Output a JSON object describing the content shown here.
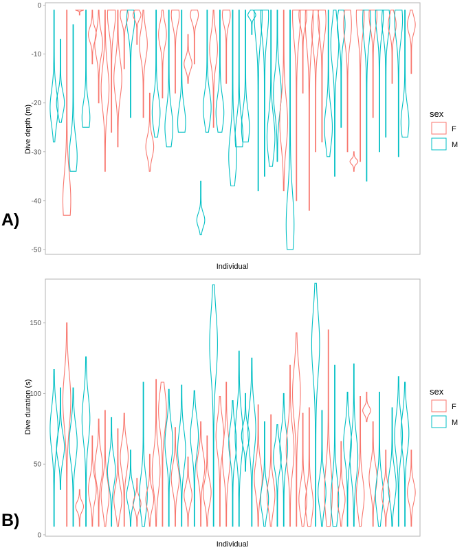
{
  "colors": {
    "F": "#F8766D",
    "M": "#00BFC4",
    "frame": "#B3B3B3",
    "tick": "#4D4D4D"
  },
  "chart_data": [
    {
      "type": "violin",
      "panel_label": "A)",
      "title": "",
      "xlabel": "Individual",
      "ylabel": "Dive depth (m)",
      "ylim": [
        -51,
        0.5
      ],
      "yticks": [
        0,
        -10,
        -20,
        -30,
        -40,
        -50
      ],
      "ytick_labels": [
        "0",
        "-10",
        "-20",
        "-30",
        "-40",
        "-50"
      ],
      "legend": {
        "title": "sex",
        "entries": [
          "F",
          "M"
        ],
        "placement": "right"
      },
      "series": [
        {
          "sex": "M",
          "min": -28,
          "max": -1,
          "mode": -21
        },
        {
          "sex": "M",
          "min": -24,
          "max": -7,
          "mode": -20
        },
        {
          "sex": "F",
          "min": -43,
          "max": -1,
          "mode": -40
        },
        {
          "sex": "M",
          "min": -34,
          "max": -4,
          "mode": -31
        },
        {
          "sex": "F",
          "min": -2,
          "max": -1,
          "mode": -1
        },
        {
          "sex": "M",
          "min": -25,
          "max": -1,
          "mode": -23
        },
        {
          "sex": "F",
          "min": -12,
          "max": -1,
          "mode": -6
        },
        {
          "sex": "F",
          "min": -20,
          "max": -1,
          "mode": -8
        },
        {
          "sex": "F",
          "min": -34,
          "max": -1,
          "mode": -17
        },
        {
          "sex": "F",
          "min": -26,
          "max": -1,
          "mode": -2
        },
        {
          "sex": "F",
          "min": -29,
          "max": -1,
          "mode": -15
        },
        {
          "sex": "F",
          "min": -13,
          "max": -1,
          "mode": -2
        },
        {
          "sex": "M",
          "min": -23,
          "max": -1,
          "mode": -3
        },
        {
          "sex": "F",
          "min": -8,
          "max": -1,
          "mode": -2
        },
        {
          "sex": "F",
          "min": -23,
          "max": -1,
          "mode": -8
        },
        {
          "sex": "F",
          "min": -34,
          "max": -18,
          "mode": -29
        },
        {
          "sex": "M",
          "min": -27,
          "max": -1,
          "mode": -22
        },
        {
          "sex": "F",
          "min": -19,
          "max": -1,
          "mode": -6
        },
        {
          "sex": "M",
          "min": -29,
          "max": -1,
          "mode": -25
        },
        {
          "sex": "F",
          "min": -18,
          "max": -1,
          "mode": -2
        },
        {
          "sex": "M",
          "min": -26,
          "max": -1,
          "mode": -24
        },
        {
          "sex": "F",
          "min": -16,
          "max": -6,
          "mode": -12
        },
        {
          "sex": "F",
          "min": -12,
          "max": -1,
          "mode": -2
        },
        {
          "sex": "M",
          "min": -47,
          "max": -36,
          "mode": -44
        },
        {
          "sex": "M",
          "min": -26,
          "max": -1,
          "mode": -21
        },
        {
          "sex": "F",
          "min": -25,
          "max": -1,
          "mode": -9
        },
        {
          "sex": "M",
          "min": -26,
          "max": -1,
          "mode": -22
        },
        {
          "sex": "F",
          "min": -16,
          "max": -1,
          "mode": -2
        },
        {
          "sex": "M",
          "min": -37,
          "max": -1,
          "mode": -31
        },
        {
          "sex": "M",
          "min": -29,
          "max": -1,
          "mode": -27
        },
        {
          "sex": "M",
          "min": -28,
          "max": -1,
          "mode": -25
        },
        {
          "sex": "M",
          "min": -6,
          "max": -1,
          "mode": -2
        },
        {
          "sex": "M",
          "min": -38,
          "max": -1,
          "mode": -2
        },
        {
          "sex": "M",
          "min": -35,
          "max": -1,
          "mode": -2
        },
        {
          "sex": "M",
          "min": -33,
          "max": -1,
          "mode": -27
        },
        {
          "sex": "M",
          "min": -32,
          "max": -1,
          "mode": -18
        },
        {
          "sex": "F",
          "min": -38,
          "max": -1,
          "mode": -24
        },
        {
          "sex": "M",
          "min": -50,
          "max": -1,
          "mode": -45
        },
        {
          "sex": "F",
          "min": -40,
          "max": -1,
          "mode": -2
        },
        {
          "sex": "F",
          "min": -18,
          "max": -1,
          "mode": -2
        },
        {
          "sex": "F",
          "min": -42,
          "max": -1,
          "mode": -3
        },
        {
          "sex": "F",
          "min": -30,
          "max": -1,
          "mode": -5
        },
        {
          "sex": "F",
          "min": -28,
          "max": -1,
          "mode": -3
        },
        {
          "sex": "M",
          "min": -31,
          "max": -1,
          "mode": -25
        },
        {
          "sex": "M",
          "min": -35,
          "max": -1,
          "mode": -8
        },
        {
          "sex": "M",
          "min": -25,
          "max": -1,
          "mode": -4
        },
        {
          "sex": "F",
          "min": -30,
          "max": -1,
          "mode": -4
        },
        {
          "sex": "F",
          "min": -34,
          "max": -30,
          "mode": -32
        },
        {
          "sex": "F",
          "min": -32,
          "max": -1,
          "mode": -2
        },
        {
          "sex": "M",
          "min": -36,
          "max": -1,
          "mode": -3
        },
        {
          "sex": "F",
          "min": -23,
          "max": -1,
          "mode": -2
        },
        {
          "sex": "M",
          "min": -30,
          "max": -1,
          "mode": -2
        },
        {
          "sex": "M",
          "min": -27,
          "max": -1,
          "mode": -3
        },
        {
          "sex": "F",
          "min": -16,
          "max": -1,
          "mode": -4
        },
        {
          "sex": "M",
          "min": -31,
          "max": -1,
          "mode": -3
        },
        {
          "sex": "M",
          "min": -27,
          "max": -1,
          "mode": -24
        },
        {
          "sex": "F",
          "min": -14,
          "max": -1,
          "mode": -4
        }
      ]
    },
    {
      "type": "violin",
      "panel_label": "B)",
      "title": "",
      "xlabel": "Individual",
      "ylabel": "Dive duration (s)",
      "ylim": [
        -1,
        181
      ],
      "yticks": [
        0,
        50,
        100,
        150
      ],
      "ytick_labels": [
        "0",
        "50",
        "100",
        "150"
      ],
      "legend": {
        "title": "sex",
        "entries": [
          "F",
          "M"
        ],
        "placement": "right"
      },
      "series": [
        {
          "sex": "M",
          "min": 6,
          "max": 117,
          "mode": 75
        },
        {
          "sex": "M",
          "min": 32,
          "max": 104,
          "mode": 62
        },
        {
          "sex": "F",
          "min": 6,
          "max": 150,
          "mode": 95
        },
        {
          "sex": "M",
          "min": 6,
          "max": 104,
          "mode": 65
        },
        {
          "sex": "F",
          "min": 6,
          "max": 32,
          "mode": 20
        },
        {
          "sex": "M",
          "min": 6,
          "max": 126,
          "mode": 82
        },
        {
          "sex": "F",
          "min": 6,
          "max": 70,
          "mode": 32
        },
        {
          "sex": "F",
          "min": 6,
          "max": 82,
          "mode": 48
        },
        {
          "sex": "F",
          "min": 6,
          "max": 88,
          "mode": 28
        },
        {
          "sex": "M",
          "min": 6,
          "max": 83,
          "mode": 45
        },
        {
          "sex": "F",
          "min": 6,
          "max": 75,
          "mode": 25
        },
        {
          "sex": "F",
          "min": 6,
          "max": 86,
          "mode": 55
        },
        {
          "sex": "M",
          "min": 6,
          "max": 60,
          "mode": 28
        },
        {
          "sex": "F",
          "min": 6,
          "max": 40,
          "mode": 22
        },
        {
          "sex": "M",
          "min": 6,
          "max": 108,
          "mode": 28
        },
        {
          "sex": "F",
          "min": 6,
          "max": 57,
          "mode": 25
        },
        {
          "sex": "F",
          "min": 6,
          "max": 110,
          "mode": 45
        },
        {
          "sex": "F",
          "min": 6,
          "max": 108,
          "mode": 88
        },
        {
          "sex": "M",
          "min": 6,
          "max": 103,
          "mode": 65
        },
        {
          "sex": "F",
          "min": 6,
          "max": 76,
          "mode": 40
        },
        {
          "sex": "M",
          "min": 6,
          "max": 106,
          "mode": 60
        },
        {
          "sex": "F",
          "min": 6,
          "max": 55,
          "mode": 28
        },
        {
          "sex": "M",
          "min": 6,
          "max": 102,
          "mode": 70
        },
        {
          "sex": "F",
          "min": 6,
          "max": 80,
          "mode": 48
        },
        {
          "sex": "F",
          "min": 6,
          "max": 70,
          "mode": 30
        },
        {
          "sex": "M",
          "min": 6,
          "max": 177,
          "mode": 135
        },
        {
          "sex": "F",
          "min": 6,
          "max": 98,
          "mode": 70
        },
        {
          "sex": "F",
          "min": 6,
          "max": 108,
          "mode": 55
        },
        {
          "sex": "M",
          "min": 6,
          "max": 95,
          "mode": 65
        },
        {
          "sex": "M",
          "min": 6,
          "max": 130,
          "mode": 70
        },
        {
          "sex": "M",
          "min": 45,
          "max": 100,
          "mode": 70
        },
        {
          "sex": "M",
          "min": 6,
          "max": 125,
          "mode": 75
        },
        {
          "sex": "F",
          "min": 6,
          "max": 92,
          "mode": 40
        },
        {
          "sex": "M",
          "min": 6,
          "max": 80,
          "mode": 25
        },
        {
          "sex": "F",
          "min": 6,
          "max": 85,
          "mode": 28
        },
        {
          "sex": "M",
          "min": 6,
          "max": 78,
          "mode": 55
        },
        {
          "sex": "M",
          "min": 6,
          "max": 100,
          "mode": 62
        },
        {
          "sex": "F",
          "min": 6,
          "max": 120,
          "mode": 60
        },
        {
          "sex": "F",
          "min": 6,
          "max": 143,
          "mode": 100
        },
        {
          "sex": "F",
          "min": 6,
          "max": 86,
          "mode": 25
        },
        {
          "sex": "F",
          "min": 6,
          "max": 90,
          "mode": 22
        },
        {
          "sex": "M",
          "min": 6,
          "max": 178,
          "mode": 135
        },
        {
          "sex": "M",
          "min": 6,
          "max": 88,
          "mode": 30
        },
        {
          "sex": "F",
          "min": 6,
          "max": 145,
          "mode": 30
        },
        {
          "sex": "M",
          "min": 6,
          "max": 120,
          "mode": 25
        },
        {
          "sex": "F",
          "min": 6,
          "max": 66,
          "mode": 25
        },
        {
          "sex": "M",
          "min": 6,
          "max": 101,
          "mode": 65
        },
        {
          "sex": "M",
          "min": 6,
          "max": 121,
          "mode": 55
        },
        {
          "sex": "F",
          "min": 6,
          "max": 98,
          "mode": 28
        },
        {
          "sex": "F",
          "min": 80,
          "max": 101,
          "mode": 88
        },
        {
          "sex": "F",
          "min": 6,
          "max": 80,
          "mode": 40
        },
        {
          "sex": "M",
          "min": 6,
          "max": 101,
          "mode": 28
        },
        {
          "sex": "F",
          "min": 6,
          "max": 60,
          "mode": 28
        },
        {
          "sex": "M",
          "min": 6,
          "max": 90,
          "mode": 35
        },
        {
          "sex": "M",
          "min": 6,
          "max": 112,
          "mode": 70
        },
        {
          "sex": "M",
          "min": 6,
          "max": 108,
          "mode": 72
        },
        {
          "sex": "F",
          "min": 6,
          "max": 60,
          "mode": 30
        }
      ]
    }
  ]
}
